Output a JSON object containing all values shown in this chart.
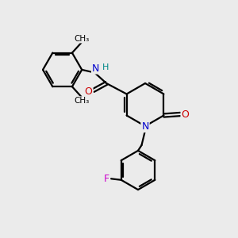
{
  "background_color": "#ebebeb",
  "bond_color": "#000000",
  "atom_colors": {
    "N": "#0000cc",
    "O": "#cc0000",
    "F": "#cc00cc",
    "H": "#008888",
    "C": "#000000"
  },
  "figsize": [
    3.0,
    3.0
  ],
  "dpi": 100
}
